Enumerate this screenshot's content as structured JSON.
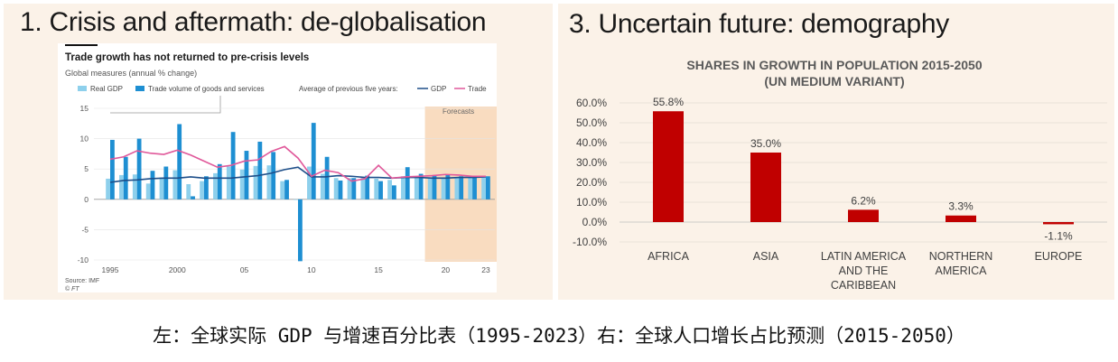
{
  "left": {
    "slide_title": "1. Crisis and aftermath: de-globalisation",
    "chart_title": "Trade growth has not returned to pre-crisis levels",
    "subtitle": "Global measures (annual % change)",
    "legend": {
      "real_gdp": "Real GDP",
      "trade_volume": "Trade volume of goods and services",
      "avg_label": "Average of previous five years:",
      "avg_gdp": "GDP",
      "avg_trade": "Trade"
    },
    "forecasts_label": "Forecasts",
    "source": "Source: IMF",
    "credit": "© FT"
  },
  "right": {
    "slide_title": "3. Uncertain future: demography",
    "chart_title_line1": "SHARES IN GROWTH IN POPULATION 2015-2050",
    "chart_title_line2": "(UN MEDIUM VARIANT)"
  },
  "caption": "左：全球实际 GDP 与增速百分比表（1995-2023）右：全球人口增长占比预测（2015-2050）",
  "chart_data": [
    {
      "type": "bar",
      "title": "Trade growth has not returned to pre-crisis levels",
      "ylabel": "Global measures (annual % change)",
      "x": [
        1995,
        1996,
        1997,
        1998,
        1999,
        2000,
        2001,
        2002,
        2003,
        2004,
        2005,
        2006,
        2007,
        2008,
        2009,
        2010,
        2011,
        2012,
        2013,
        2014,
        2015,
        2016,
        2017,
        2018,
        2019,
        2020,
        2021,
        2022,
        2023
      ],
      "x_tick_labels": [
        "1995",
        "2000",
        "05",
        "10",
        "15",
        "20",
        "23"
      ],
      "x_tick_values": [
        1995,
        2000,
        2005,
        2010,
        2015,
        2020,
        2023
      ],
      "ylim": [
        -10,
        15
      ],
      "y_ticks": [
        -10,
        -5,
        0,
        5,
        10,
        15
      ],
      "forecast_start": 2019,
      "series": [
        {
          "name": "Real GDP",
          "color": "#8ed0ec",
          "values": [
            3.4,
            4.0,
            4.1,
            2.6,
            3.6,
            4.8,
            2.5,
            3.0,
            4.3,
            5.4,
            4.9,
            5.5,
            5.6,
            3.0,
            -0.1,
            5.4,
            4.2,
            3.5,
            3.5,
            3.6,
            3.4,
            3.2,
            3.8,
            3.6,
            3.5,
            3.6,
            3.6,
            3.7,
            3.7
          ]
        },
        {
          "name": "Trade volume of goods and services",
          "color": "#1e8fd2",
          "values": [
            9.8,
            7.0,
            10.0,
            4.7,
            5.4,
            12.4,
            0.5,
            3.8,
            5.8,
            11.1,
            8.0,
            9.5,
            7.8,
            3.2,
            -10.2,
            12.6,
            7.0,
            3.1,
            3.5,
            3.9,
            3.0,
            2.3,
            5.3,
            4.2,
            4.0,
            4.0,
            3.8,
            3.9,
            3.8
          ]
        },
        {
          "name": "GDP",
          "color": "#1d4e89",
          "type": "line",
          "values": [
            2.8,
            3.1,
            3.2,
            3.4,
            3.5,
            3.5,
            3.7,
            3.5,
            3.5,
            3.5,
            3.7,
            3.9,
            4.3,
            4.9,
            5.3,
            3.7,
            3.7,
            3.9,
            3.8,
            3.6,
            3.6,
            3.5,
            3.6,
            3.6,
            3.5,
            3.5,
            3.6,
            3.6,
            3.7
          ]
        },
        {
          "name": "Trade",
          "color": "#e0589a",
          "type": "line",
          "values": [
            6.6,
            7.0,
            8.0,
            7.6,
            7.4,
            8.1,
            7.3,
            6.3,
            5.3,
            5.6,
            6.3,
            6.5,
            7.9,
            8.7,
            6.8,
            3.8,
            4.8,
            4.4,
            3.0,
            3.4,
            5.6,
            3.5,
            3.7,
            3.8,
            3.9,
            4.1,
            4.0,
            3.8,
            3.8
          ]
        }
      ]
    },
    {
      "type": "bar",
      "title": "SHARES IN GROWTH IN POPULATION 2015-2050 (UN MEDIUM VARIANT)",
      "categories": [
        "AFRICA",
        "ASIA",
        "LATIN AMERICA AND THE CARIBBEAN",
        "NORTHERN AMERICA",
        "EUROPE"
      ],
      "category_lines": [
        [
          "AFRICA"
        ],
        [
          "ASIA"
        ],
        [
          "LATIN AMERICA",
          "AND THE",
          "CARIBBEAN"
        ],
        [
          "NORTHERN",
          "AMERICA"
        ],
        [
          "EUROPE"
        ]
      ],
      "values": [
        55.8,
        35.0,
        6.2,
        3.3,
        -1.1
      ],
      "value_labels": [
        "55.8%",
        "35.0%",
        "6.2%",
        "3.3%",
        "-1.1%"
      ],
      "ylim": [
        -10,
        60
      ],
      "y_ticks": [
        -10,
        0,
        10,
        20,
        30,
        40,
        50,
        60
      ],
      "y_tick_labels": [
        "-10.0%",
        "0.0%",
        "10.0%",
        "20.0%",
        "30.0%",
        "40.0%",
        "50.0%",
        "60.0%"
      ],
      "bar_color": "#c00000",
      "grid": true
    }
  ]
}
